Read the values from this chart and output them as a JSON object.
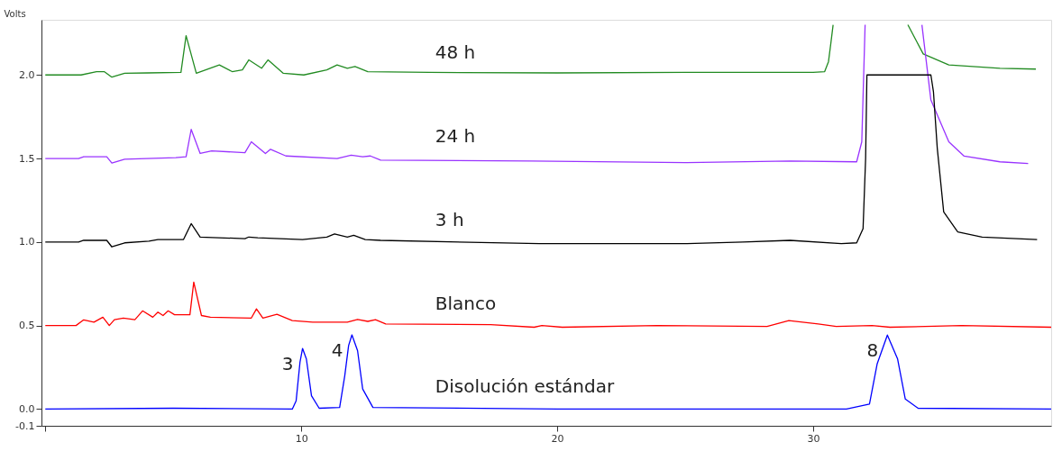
{
  "chart_data": {
    "type": "line",
    "ylabel": "Volts",
    "xlim": [
      -0.15,
      39.3
    ],
    "ylim": [
      -0.1,
      2.33
    ],
    "xticks": [
      {
        "value": 0,
        "label": null
      },
      10,
      20,
      30
    ],
    "yticks": [
      -0.1,
      {
        "value": 0,
        "label": "0.0"
      },
      0.5,
      {
        "value": 1,
        "label": "1.0"
      },
      1.5,
      {
        "value": 2,
        "label": "2.0"
      }
    ],
    "grid": false,
    "legend": false,
    "marker": "none",
    "line_style": "solid",
    "series": [
      {
        "name": "48 h",
        "color": "#228b22",
        "x": [
          0,
          1.4,
          2.0,
          2.3,
          2.6,
          3.1,
          4.0,
          5.3,
          5.5,
          5.9,
          6.8,
          7.3,
          7.7,
          7.95,
          8.45,
          8.7,
          9.3,
          10.1,
          11.0,
          11.4,
          11.8,
          12.1,
          12.6,
          15,
          20,
          25,
          30.0,
          30.45,
          30.6,
          30.7,
          30.78,
          32,
          33.7,
          34.3,
          35.3,
          37.3,
          38.7
        ],
        "values": [
          2.0,
          2.0,
          2.02,
          2.02,
          1.987,
          2.01,
          2.012,
          2.015,
          2.235,
          2.01,
          2.06,
          2.02,
          2.03,
          2.09,
          2.04,
          2.09,
          2.01,
          2.0,
          2.03,
          2.06,
          2.04,
          2.05,
          2.02,
          2.015,
          2.012,
          2.015,
          2.015,
          2.02,
          2.08,
          2.2,
          2.3,
          null,
          2.3,
          2.126,
          2.06,
          2.04,
          2.035
        ]
      },
      {
        "name": "24 h",
        "color": "#9933ff",
        "x": [
          0,
          1.3,
          1.5,
          2.4,
          2.6,
          3.1,
          5.1,
          5.5,
          5.7,
          6.05,
          6.5,
          7.8,
          8.05,
          8.6,
          8.8,
          9.4,
          11.4,
          11.95,
          12.4,
          12.7,
          13.1,
          19,
          25,
          29.1,
          31.7,
          31.9,
          32.03,
          33,
          34.25,
          34.6,
          35.3,
          35.9,
          37.3,
          38.4
        ],
        "values": [
          1.5,
          1.5,
          1.51,
          1.51,
          1.473,
          1.495,
          1.505,
          1.51,
          1.674,
          1.53,
          1.545,
          1.535,
          1.6,
          1.53,
          1.555,
          1.515,
          1.5,
          1.52,
          1.51,
          1.515,
          1.49,
          1.485,
          1.475,
          1.485,
          1.48,
          1.6,
          2.3,
          null,
          2.3,
          1.85,
          1.6,
          1.514,
          1.48,
          1.47
        ]
      },
      {
        "name": "3 h",
        "color": "#000000",
        "x": [
          0,
          1.3,
          1.5,
          2.4,
          2.6,
          3.1,
          4.05,
          4.4,
          5.4,
          5.7,
          6.05,
          7.8,
          7.95,
          8.3,
          10.05,
          11.0,
          11.3,
          11.8,
          12.05,
          12.5,
          13.1,
          19.3,
          25,
          27.25,
          29.1,
          31.1,
          31.7,
          31.95,
          32.05,
          32.1,
          34.6,
          34.7,
          34.85,
          35.1,
          35.65,
          36.6,
          38.75
        ],
        "values": [
          1.0,
          1.0,
          1.01,
          1.01,
          0.971,
          0.995,
          1.005,
          1.015,
          1.015,
          1.11,
          1.03,
          1.02,
          1.03,
          1.025,
          1.015,
          1.03,
          1.048,
          1.03,
          1.04,
          1.015,
          1.01,
          0.99,
          0.99,
          1.0,
          1.01,
          0.99,
          0.995,
          1.08,
          1.5,
          2.0,
          2.0,
          1.9,
          1.56,
          1.18,
          1.06,
          1.03,
          1.015
        ]
      },
      {
        "name": "Blanco",
        "color": "#ff0000",
        "x": [
          0,
          1.2,
          1.5,
          1.9,
          2.25,
          2.5,
          2.7,
          3.05,
          3.5,
          3.8,
          4.2,
          4.4,
          4.6,
          4.8,
          5.05,
          5.65,
          5.8,
          6.1,
          6.45,
          8.05,
          8.25,
          8.5,
          9.05,
          9.65,
          10.45,
          11.8,
          12.2,
          12.6,
          12.9,
          13.3,
          17.4,
          19.1,
          19.4,
          20.2,
          23.9,
          28.2,
          29.05,
          30.2,
          30.9,
          32.3,
          33.0,
          35.8,
          39.3
        ],
        "values": [
          0.5,
          0.5,
          0.534,
          0.52,
          0.55,
          0.5,
          0.535,
          0.545,
          0.535,
          0.588,
          0.55,
          0.58,
          0.56,
          0.588,
          0.565,
          0.565,
          0.76,
          0.56,
          0.55,
          0.545,
          0.6,
          0.545,
          0.567,
          0.53,
          0.52,
          0.52,
          0.537,
          0.525,
          0.535,
          0.51,
          0.505,
          0.49,
          0.5,
          0.49,
          0.5,
          0.495,
          0.53,
          0.51,
          0.495,
          0.5,
          0.49,
          0.5,
          0.49
        ]
      },
      {
        "name": "Disolución estándar",
        "color": "#0000ff",
        "x": [
          0,
          5.0,
          9.65,
          9.8,
          9.95,
          10.05,
          10.2,
          10.4,
          10.7,
          11.5,
          11.7,
          11.85,
          11.98,
          12.2,
          12.4,
          12.8,
          20,
          31.3,
          32.2,
          32.5,
          32.9,
          33.3,
          33.6,
          34.1,
          39.3
        ],
        "values": [
          0,
          0.005,
          0,
          0.05,
          0.28,
          0.363,
          0.3,
          0.08,
          0.005,
          0.01,
          0.2,
          0.38,
          0.444,
          0.35,
          0.12,
          0.01,
          0,
          0,
          0.03,
          0.27,
          0.443,
          0.3,
          0.06,
          0.005,
          0
        ]
      }
    ],
    "annotations": [
      {
        "text": "3",
        "x": 10.05,
        "y": 0.363
      },
      {
        "text": "4",
        "x": 11.98,
        "y": 0.444
      },
      {
        "text": "8",
        "x": 32.9,
        "y": 0.443
      }
    ]
  }
}
